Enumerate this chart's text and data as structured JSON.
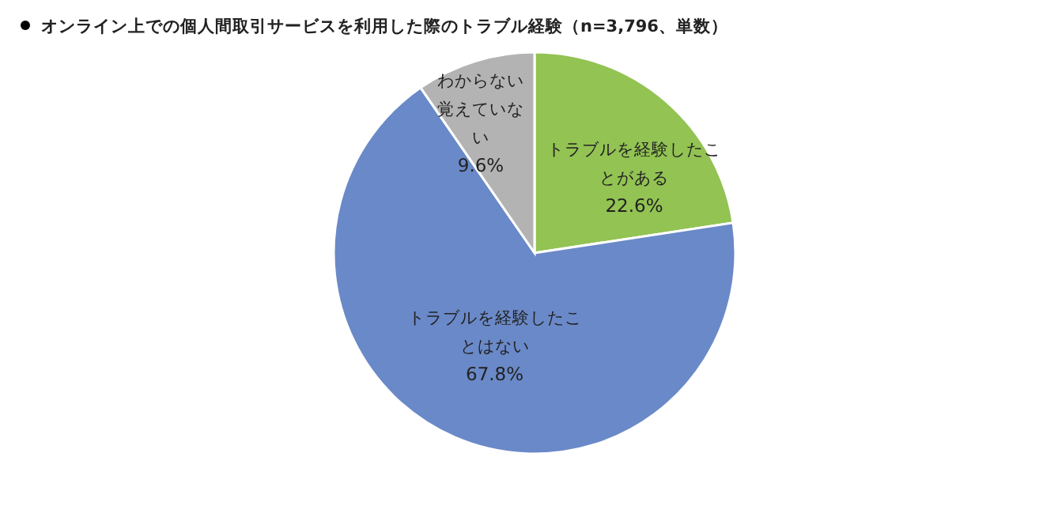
{
  "chart_data": {
    "type": "pie",
    "title": "オンライン上での個人間取引サービスを利用した際のトラブル経験（n=3,796、単数）",
    "categories": [
      "トラブルを経験したことがある",
      "トラブルを経験したことはない",
      "わからない覚えていない"
    ],
    "values": [
      22.6,
      67.8,
      9.6
    ],
    "value_labels": [
      "22.6%",
      "67.8%",
      "9.6%"
    ],
    "colors": [
      "#92c353",
      "#6a89c8",
      "#b3b3b3"
    ]
  }
}
